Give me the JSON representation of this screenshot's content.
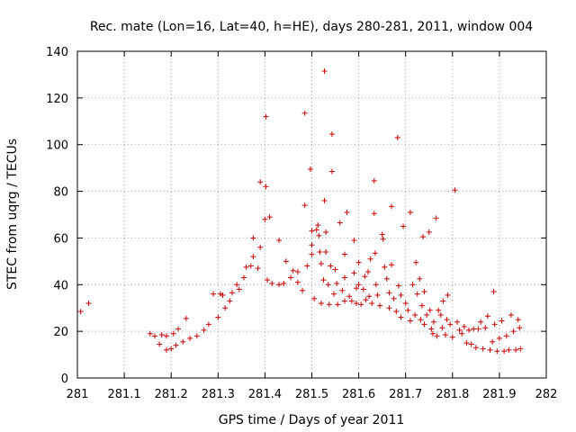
{
  "chart_data": {
    "type": "scatter",
    "title": "Rec. mate (Lon=16, Lat=40, h=HE), days 280-281, 2011, window 004",
    "xlabel": "GPS time / Days of year 2011",
    "ylabel": "STEC from uqrg / TECUs",
    "xlim": [
      281,
      282
    ],
    "ylim": [
      0,
      140
    ],
    "grid": true,
    "marker": "+",
    "color": "#cc0000",
    "x_ticks": [
      281,
      281.1,
      281.2,
      281.3,
      281.4,
      281.5,
      281.6,
      281.7,
      281.8,
      281.9,
      282
    ],
    "x_tick_labels": [
      "281",
      "281.1",
      "281.2",
      "281.3",
      "281.4",
      "281.5",
      "281.6",
      "281.7",
      "281.8",
      "281.9",
      "282"
    ],
    "y_ticks": [
      0,
      20,
      40,
      60,
      80,
      100,
      120,
      140
    ],
    "y_tick_labels": [
      "0",
      "20",
      "40",
      "60",
      "80",
      "100",
      "120",
      "140"
    ],
    "series": [
      {
        "name": "STEC",
        "points": [
          [
            281.007,
            28.5
          ],
          [
            281.024,
            32
          ],
          [
            281.155,
            19
          ],
          [
            281.165,
            18
          ],
          [
            281.175,
            14.5
          ],
          [
            281.18,
            18.5
          ],
          [
            281.19,
            12
          ],
          [
            281.19,
            18
          ],
          [
            281.2,
            12.5
          ],
          [
            281.205,
            19
          ],
          [
            281.21,
            14
          ],
          [
            281.215,
            21
          ],
          [
            281.225,
            15.5
          ],
          [
            281.232,
            25.5
          ],
          [
            281.24,
            17
          ],
          [
            281.255,
            18
          ],
          [
            281.27,
            20.5
          ],
          [
            281.28,
            23
          ],
          [
            281.29,
            36
          ],
          [
            281.3,
            26
          ],
          [
            281.305,
            36
          ],
          [
            281.31,
            35.5
          ],
          [
            281.315,
            30
          ],
          [
            281.325,
            33
          ],
          [
            281.33,
            36.5
          ],
          [
            281.34,
            40
          ],
          [
            281.345,
            38
          ],
          [
            281.355,
            43
          ],
          [
            281.36,
            47.5
          ],
          [
            281.37,
            48
          ],
          [
            281.375,
            52
          ],
          [
            281.375,
            60
          ],
          [
            281.385,
            47
          ],
          [
            281.39,
            84
          ],
          [
            281.39,
            56
          ],
          [
            281.4,
            68
          ],
          [
            281.402,
            112
          ],
          [
            281.402,
            82
          ],
          [
            281.405,
            42
          ],
          [
            281.41,
            69
          ],
          [
            281.415,
            40.5
          ],
          [
            281.43,
            59
          ],
          [
            281.43,
            40
          ],
          [
            281.44,
            40.5
          ],
          [
            281.445,
            50
          ],
          [
            281.455,
            43
          ],
          [
            281.46,
            46
          ],
          [
            281.47,
            41
          ],
          [
            281.47,
            45.5
          ],
          [
            281.48,
            37.5
          ],
          [
            281.485,
            113.5
          ],
          [
            281.485,
            74
          ],
          [
            281.49,
            48
          ],
          [
            281.497,
            89.5
          ],
          [
            281.5,
            63
          ],
          [
            281.5,
            57
          ],
          [
            281.5,
            53
          ],
          [
            281.505,
            34
          ],
          [
            281.51,
            63.5
          ],
          [
            281.513,
            65.5
          ],
          [
            281.515,
            61
          ],
          [
            281.517,
            54
          ],
          [
            281.52,
            49
          ],
          [
            281.52,
            32
          ],
          [
            281.525,
            42
          ],
          [
            281.527,
            131.5
          ],
          [
            281.527,
            76
          ],
          [
            281.53,
            62.5
          ],
          [
            281.53,
            54
          ],
          [
            281.535,
            40
          ],
          [
            281.537,
            31.5
          ],
          [
            281.54,
            48
          ],
          [
            281.543,
            104.5
          ],
          [
            281.543,
            88.5
          ],
          [
            281.547,
            36
          ],
          [
            281.55,
            46.5
          ],
          [
            281.553,
            40.5
          ],
          [
            281.555,
            31.5
          ],
          [
            281.56,
            66.5
          ],
          [
            281.565,
            37.5
          ],
          [
            281.57,
            43
          ],
          [
            281.57,
            53
          ],
          [
            281.57,
            33
          ],
          [
            281.575,
            71
          ],
          [
            281.58,
            35
          ],
          [
            281.585,
            33
          ],
          [
            281.59,
            59
          ],
          [
            281.59,
            45
          ],
          [
            281.595,
            38.5
          ],
          [
            281.595,
            32
          ],
          [
            281.6,
            49.5
          ],
          [
            281.6,
            40
          ],
          [
            281.605,
            31.5
          ],
          [
            281.61,
            38
          ],
          [
            281.613,
            43.5
          ],
          [
            281.615,
            33.5
          ],
          [
            281.62,
            45.5
          ],
          [
            281.622,
            35
          ],
          [
            281.625,
            51
          ],
          [
            281.628,
            32
          ],
          [
            281.633,
            84.5
          ],
          [
            281.633,
            70.5
          ],
          [
            281.635,
            53.5
          ],
          [
            281.637,
            40
          ],
          [
            281.64,
            35.5
          ],
          [
            281.645,
            31
          ],
          [
            281.65,
            61.5
          ],
          [
            281.652,
            59.5
          ],
          [
            281.655,
            47.5
          ],
          [
            281.66,
            42.5
          ],
          [
            281.665,
            36.5
          ],
          [
            281.665,
            30
          ],
          [
            281.67,
            73.5
          ],
          [
            281.67,
            48.5
          ],
          [
            281.675,
            34
          ],
          [
            281.68,
            28.5
          ],
          [
            281.683,
            103
          ],
          [
            281.685,
            39.5
          ],
          [
            281.69,
            35.5
          ],
          [
            281.69,
            26
          ],
          [
            281.695,
            65
          ],
          [
            281.7,
            32
          ],
          [
            281.705,
            29
          ],
          [
            281.71,
            24.5
          ],
          [
            281.71,
            71
          ],
          [
            281.715,
            40
          ],
          [
            281.72,
            27
          ],
          [
            281.722,
            49.5
          ],
          [
            281.725,
            36
          ],
          [
            281.73,
            42.5
          ],
          [
            281.732,
            25
          ],
          [
            281.735,
            31
          ],
          [
            281.737,
            60.5
          ],
          [
            281.74,
            37
          ],
          [
            281.74,
            23
          ],
          [
            281.745,
            27
          ],
          [
            281.75,
            62.5
          ],
          [
            281.752,
            29
          ],
          [
            281.755,
            21
          ],
          [
            281.758,
            19
          ],
          [
            281.76,
            24
          ],
          [
            281.765,
            68.5
          ],
          [
            281.767,
            18
          ],
          [
            281.77,
            29
          ],
          [
            281.775,
            27
          ],
          [
            281.778,
            21.5
          ],
          [
            281.78,
            33
          ],
          [
            281.785,
            18.5
          ],
          [
            281.788,
            25
          ],
          [
            281.79,
            35.5
          ],
          [
            281.795,
            23
          ],
          [
            281.8,
            17.5
          ],
          [
            281.805,
            80.5
          ],
          [
            281.81,
            24
          ],
          [
            281.815,
            20.5
          ],
          [
            281.82,
            19
          ],
          [
            281.825,
            22
          ],
          [
            281.83,
            15
          ],
          [
            281.835,
            20.5
          ],
          [
            281.84,
            14.5
          ],
          [
            281.845,
            21
          ],
          [
            281.85,
            13
          ],
          [
            281.855,
            21
          ],
          [
            281.86,
            24
          ],
          [
            281.865,
            12.5
          ],
          [
            281.87,
            21.5
          ],
          [
            281.875,
            26.5
          ],
          [
            281.88,
            12
          ],
          [
            281.885,
            15.5
          ],
          [
            281.888,
            37
          ],
          [
            281.89,
            23
          ],
          [
            281.895,
            11.5
          ],
          [
            281.9,
            17
          ],
          [
            281.905,
            24.5
          ],
          [
            281.91,
            11.5
          ],
          [
            281.915,
            18
          ],
          [
            281.92,
            12
          ],
          [
            281.925,
            27
          ],
          [
            281.93,
            20
          ],
          [
            281.935,
            12
          ],
          [
            281.94,
            25
          ],
          [
            281.943,
            21.5
          ],
          [
            281.945,
            12.5
          ]
        ]
      }
    ]
  }
}
